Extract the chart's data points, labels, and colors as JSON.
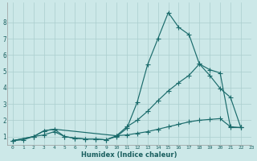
{
  "xlabel": "Humidex (Indice chaleur)",
  "bg_color": "#cce8e8",
  "line_color": "#1a6b6b",
  "grid_color": "#aacece",
  "line1_x": [
    0,
    1,
    2,
    3,
    4,
    5,
    6,
    7,
    8,
    9,
    10,
    11,
    12,
    13,
    14,
    15,
    16,
    17,
    18,
    19,
    20,
    21,
    22
  ],
  "line1_y": [
    0.75,
    0.8,
    1.0,
    1.1,
    1.3,
    1.0,
    0.9,
    0.85,
    0.85,
    0.8,
    1.0,
    1.5,
    3.1,
    5.4,
    7.0,
    8.6,
    7.7,
    7.25,
    5.45,
    4.75,
    3.95,
    3.4,
    1.55
  ],
  "line2_x": [
    0,
    2,
    3,
    4,
    10,
    11,
    12,
    13,
    14,
    15,
    16,
    17,
    18,
    19,
    20,
    21,
    22
  ],
  "line2_y": [
    0.75,
    1.0,
    1.35,
    1.45,
    1.05,
    1.6,
    2.0,
    2.55,
    3.2,
    3.8,
    4.3,
    4.75,
    5.45,
    5.1,
    4.9,
    1.55,
    1.55
  ],
  "line3_x": [
    0,
    2,
    3,
    4,
    5,
    6,
    7,
    8,
    9,
    10,
    11,
    12,
    13,
    14,
    15,
    16,
    17,
    18,
    19,
    20,
    21,
    22
  ],
  "line3_y": [
    0.75,
    1.0,
    1.35,
    1.45,
    1.0,
    0.9,
    0.85,
    0.85,
    0.8,
    1.05,
    1.1,
    1.2,
    1.3,
    1.45,
    1.6,
    1.75,
    1.9,
    2.0,
    2.05,
    2.1,
    1.6,
    1.55
  ],
  "xlim": [
    -0.5,
    23
  ],
  "ylim": [
    0.5,
    9.2
  ],
  "yticks": [
    1,
    2,
    3,
    4,
    5,
    6,
    7,
    8
  ],
  "xticks": [
    0,
    1,
    2,
    3,
    4,
    5,
    6,
    7,
    8,
    9,
    10,
    11,
    12,
    13,
    14,
    15,
    16,
    17,
    18,
    19,
    20,
    21,
    22,
    23
  ]
}
